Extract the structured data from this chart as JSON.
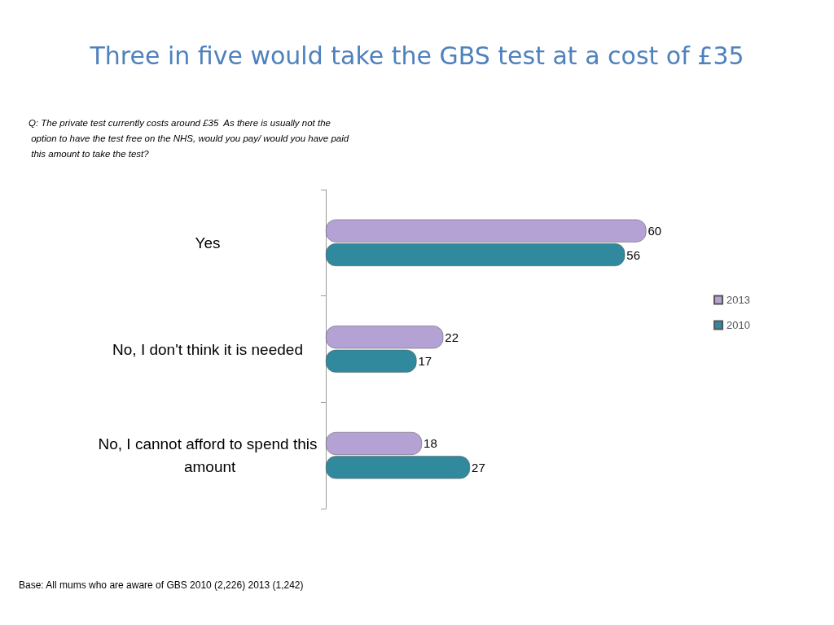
{
  "chart_data": {
    "type": "bar",
    "orientation": "horizontal",
    "title": "Three in five would take the GBS test at a cost of £35",
    "subtitle": "Q: The private test currently costs around £35  As there is usually not the option to have the test free on the NHS, would you pay/ would you have paid this amount to take the test?",
    "annotations": [
      "Base: All mums who are aware of GBS 2010 (2,226) 2013 (1,242)"
    ],
    "categories": [
      "Yes",
      "No, I don't think it is needed",
      "No, I cannot afford to spend this amount"
    ],
    "series": [
      {
        "name": "2013",
        "color": "#b4a2d4",
        "values": [
          60,
          22,
          18
        ]
      },
      {
        "name": "2010",
        "color": "#31899e",
        "values": [
          56,
          17,
          27
        ]
      }
    ],
    "data_labels": true,
    "legend": "right",
    "grid": false
  }
}
